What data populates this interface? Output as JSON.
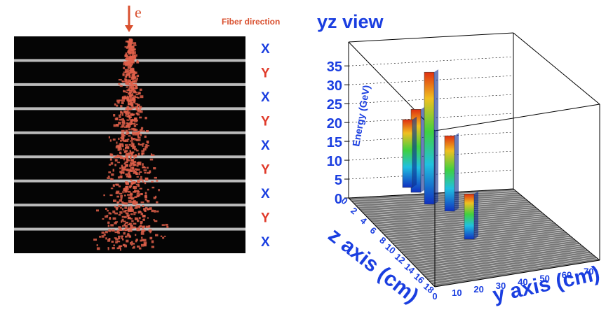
{
  "detector": {
    "particle": "e",
    "fiber_label": "Fiber direction",
    "layers": [
      "X",
      "Y",
      "X",
      "Y",
      "X",
      "Y",
      "X",
      "Y",
      "X"
    ]
  },
  "lego": {
    "title": "yz view",
    "z_title": "Energy (GeV)",
    "x_title": "z axis (cm)",
    "y_title": "y axis (cm)",
    "energy_ticks": [
      0,
      5,
      10,
      15,
      20,
      25,
      30,
      35
    ],
    "energy_lim": [
      0,
      38
    ],
    "z_ticks": [
      0,
      2,
      4,
      6,
      8,
      10,
      12,
      14,
      16,
      18
    ],
    "y_ticks": [
      0,
      10,
      20,
      30,
      40,
      50,
      60,
      70
    ],
    "towers": [
      22,
      18,
      35,
      20,
      12
    ]
  }
}
